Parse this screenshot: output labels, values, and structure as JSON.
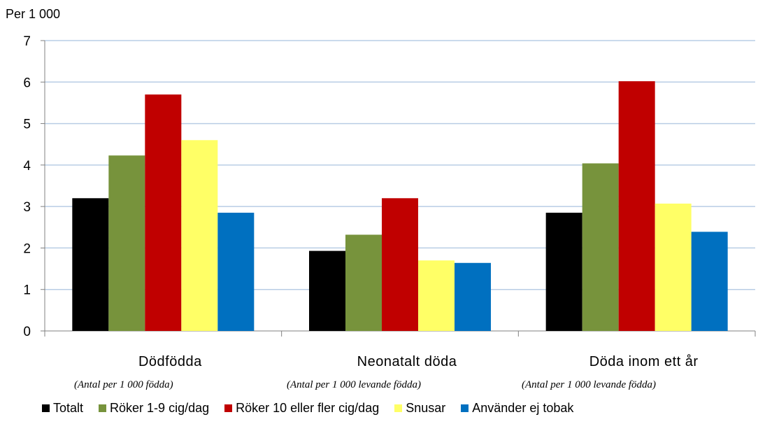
{
  "chart_data": {
    "type": "bar",
    "ylabel": "Per 1 000",
    "ylim": [
      0,
      7
    ],
    "yticks": [
      0,
      1,
      2,
      3,
      4,
      5,
      6,
      7
    ],
    "grid": true,
    "legend_position": "bottom",
    "categories": [
      "Dödfödda",
      "Neonatalt döda",
      "Döda inom ett år"
    ],
    "category_notes": [
      "(Antal per 1 000 födda)",
      "(Antal per 1 000 levande  födda)",
      "(Antal per 1 000 levande  födda)"
    ],
    "series": [
      {
        "name": "Totalt",
        "color": "#000000",
        "values": [
          3.2,
          1.93,
          2.85
        ]
      },
      {
        "name": "Röker 1-9 cig/dag",
        "color": "#77933C",
        "values": [
          4.23,
          2.32,
          4.04
        ]
      },
      {
        "name": "Röker 10 eller fler cig/dag",
        "color": "#C00000",
        "values": [
          5.7,
          3.2,
          6.02
        ]
      },
      {
        "name": "Snusar",
        "color": "#FFFF66",
        "values": [
          4.6,
          1.7,
          3.07
        ]
      },
      {
        "name": "Använder ej tobak",
        "color": "#0070C0",
        "values": [
          2.85,
          1.64,
          2.39
        ]
      }
    ]
  }
}
